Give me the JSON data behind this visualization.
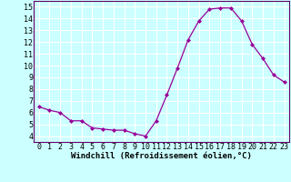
{
  "x": [
    0,
    1,
    2,
    3,
    4,
    5,
    6,
    7,
    8,
    9,
    10,
    11,
    12,
    13,
    14,
    15,
    16,
    17,
    18,
    19,
    20,
    21,
    22,
    23
  ],
  "y": [
    6.5,
    6.2,
    6.0,
    5.3,
    5.3,
    4.7,
    4.6,
    4.5,
    4.5,
    4.2,
    4.0,
    5.3,
    7.5,
    9.8,
    12.2,
    13.8,
    14.8,
    14.9,
    14.9,
    13.8,
    11.8,
    10.6,
    9.2,
    8.6
  ],
  "line_color": "#990099",
  "marker": "D",
  "marker_size": 2.0,
  "bg_color": "#ccffff",
  "grid_color": "#ffffff",
  "xlabel": "Windchill (Refroidissement éolien,°C)",
  "xlabel_fontsize": 6.5,
  "tick_fontsize": 6.0,
  "ylim": [
    3.5,
    15.5
  ],
  "yticks": [
    4,
    5,
    6,
    7,
    8,
    9,
    10,
    11,
    12,
    13,
    14,
    15
  ],
  "xlim": [
    -0.5,
    23.5
  ],
  "xticks": [
    0,
    1,
    2,
    3,
    4,
    5,
    6,
    7,
    8,
    9,
    10,
    11,
    12,
    13,
    14,
    15,
    16,
    17,
    18,
    19,
    20,
    21,
    22,
    23
  ],
  "spine_color": "#660066"
}
